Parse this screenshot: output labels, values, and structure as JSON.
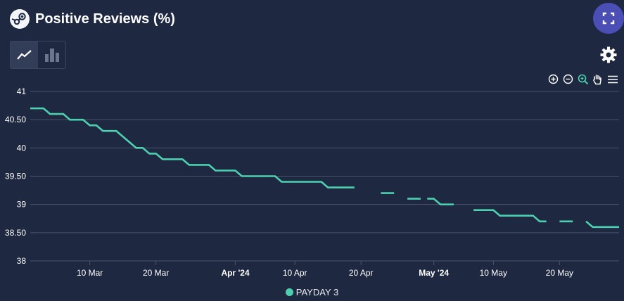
{
  "header": {
    "title": "Positive Reviews (%)"
  },
  "icons": {
    "logo": "steam-logo-icon",
    "fullscreen": "fullscreen-icon",
    "line_view": "line-chart-icon",
    "bar_view": "bar-chart-icon",
    "settings": "gear-icon",
    "zoom_in": "zoom-in-icon",
    "zoom_out": "zoom-out-icon",
    "zoom_select": "zoom-select-icon",
    "pan": "pan-hand-icon",
    "menu": "menu-icon"
  },
  "colors": {
    "background": "#1e2841",
    "series": "#4dd0b0",
    "accent": "#4b4fb5",
    "grid": "#4a5470"
  },
  "chart_data": {
    "type": "line",
    "title": "Positive Reviews (%)",
    "ylim": [
      38,
      41
    ],
    "yticks": [
      "41",
      "40.50",
      "40",
      "39.50",
      "39",
      "38.50",
      "38"
    ],
    "xticks": [
      {
        "label": "10 Mar",
        "date": "2024-03-10",
        "bold": false
      },
      {
        "label": "20 Mar",
        "date": "2024-03-20",
        "bold": false
      },
      {
        "label": "Apr '24",
        "date": "2024-04-01",
        "bold": true
      },
      {
        "label": "10 Apr",
        "date": "2024-04-10",
        "bold": false
      },
      {
        "label": "20 Apr",
        "date": "2024-04-20",
        "bold": false
      },
      {
        "label": "May '24",
        "date": "2024-05-01",
        "bold": true
      },
      {
        "label": "10 May",
        "date": "2024-05-10",
        "bold": false
      },
      {
        "label": "20 May",
        "date": "2024-05-20",
        "bold": false
      }
    ],
    "xlim": [
      "2024-03-01",
      "2024-05-29"
    ],
    "grid": true,
    "legend_position": "bottom",
    "series": [
      {
        "name": "PAYDAY 3",
        "color": "#4dd0b0",
        "points": [
          [
            "2024-03-01",
            40.7
          ],
          [
            "2024-03-03",
            40.7
          ],
          [
            "2024-03-04",
            40.6
          ],
          [
            "2024-03-06",
            40.6
          ],
          [
            "2024-03-07",
            40.5
          ],
          [
            "2024-03-09",
            40.5
          ],
          [
            "2024-03-10",
            40.4
          ],
          [
            "2024-03-11",
            40.4
          ],
          [
            "2024-03-12",
            40.3
          ],
          [
            "2024-03-14",
            40.3
          ],
          [
            "2024-03-17",
            40.0
          ],
          [
            "2024-03-18",
            40.0
          ],
          [
            "2024-03-19",
            39.9
          ],
          [
            "2024-03-20",
            39.9
          ],
          [
            "2024-03-21",
            39.8
          ],
          [
            "2024-03-24",
            39.8
          ],
          [
            "2024-03-25",
            39.7
          ],
          [
            "2024-03-28",
            39.7
          ],
          [
            "2024-03-29",
            39.6
          ],
          [
            "2024-04-01",
            39.6
          ],
          [
            "2024-04-02",
            39.5
          ],
          [
            "2024-04-07",
            39.5
          ],
          [
            "2024-04-08",
            39.4
          ],
          [
            "2024-04-14",
            39.4
          ],
          [
            "2024-04-15",
            39.3
          ],
          [
            "2024-04-19",
            39.3
          ],
          null,
          [
            "2024-04-23",
            39.2
          ],
          [
            "2024-04-25",
            39.2
          ],
          null,
          [
            "2024-04-27",
            39.1
          ],
          [
            "2024-04-29",
            39.1
          ],
          null,
          [
            "2024-04-30",
            39.1
          ],
          [
            "2024-05-01",
            39.1
          ],
          [
            "2024-05-02",
            39.0
          ],
          [
            "2024-05-04",
            39.0
          ],
          null,
          [
            "2024-05-07",
            38.9
          ],
          [
            "2024-05-10",
            38.9
          ],
          [
            "2024-05-11",
            38.8
          ],
          [
            "2024-05-16",
            38.8
          ],
          [
            "2024-05-17",
            38.7
          ],
          [
            "2024-05-18",
            38.7
          ],
          null,
          [
            "2024-05-20",
            38.7
          ],
          [
            "2024-05-22",
            38.7
          ],
          null,
          [
            "2024-05-24",
            38.7
          ],
          [
            "2024-05-25",
            38.6
          ],
          [
            "2024-05-29",
            38.6
          ]
        ]
      }
    ]
  }
}
